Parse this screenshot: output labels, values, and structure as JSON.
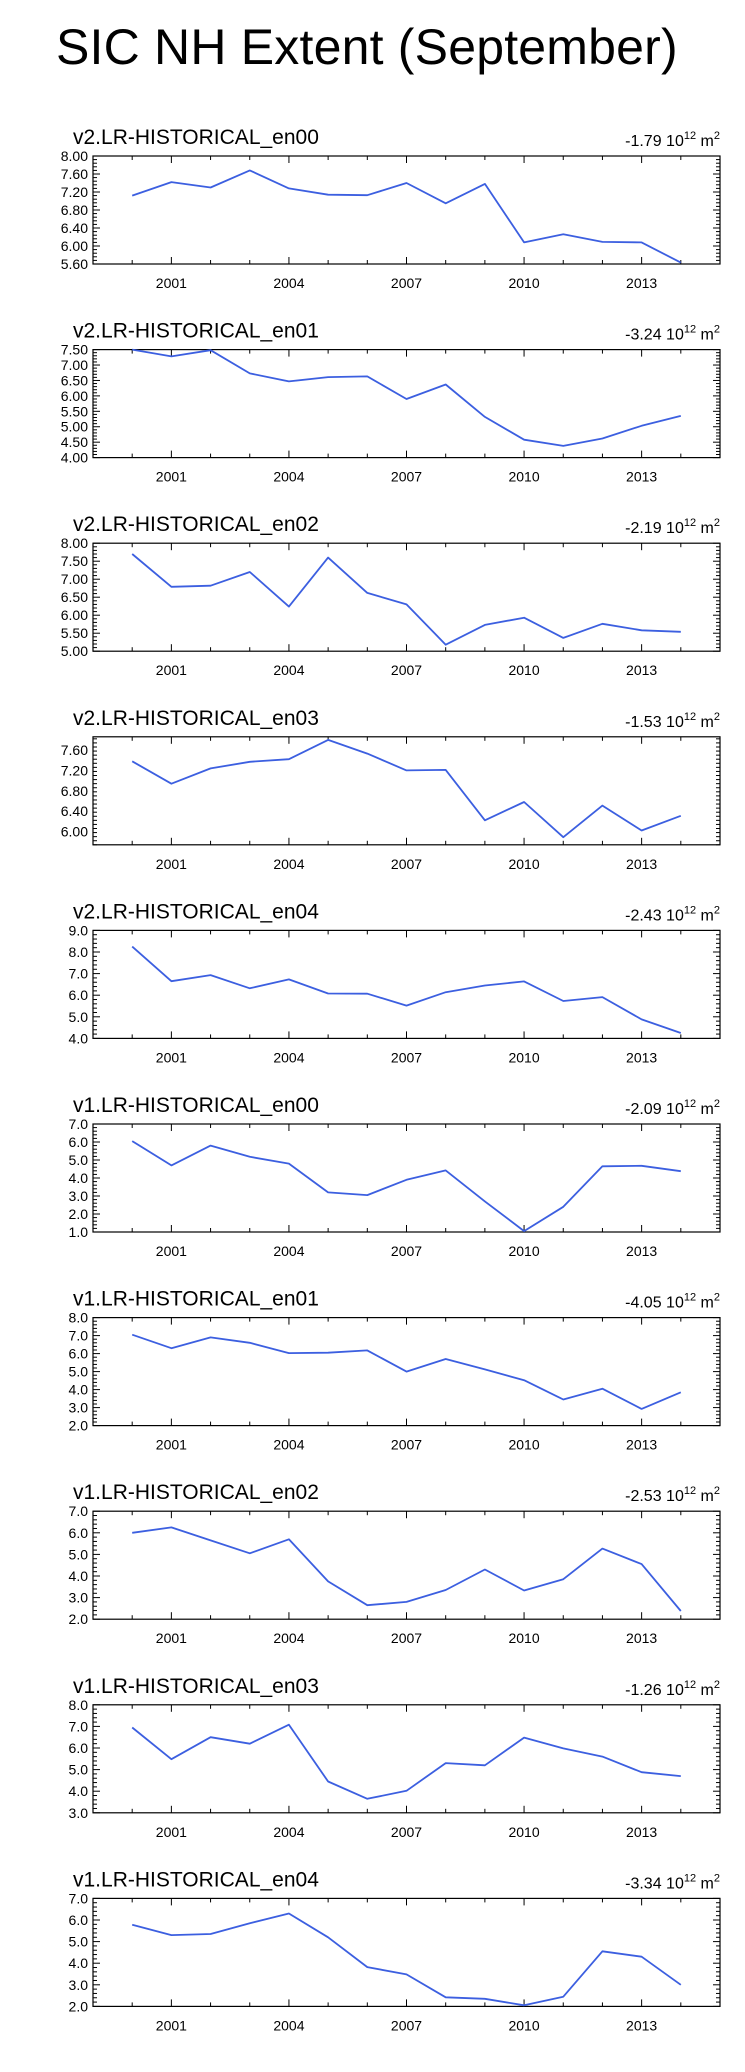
{
  "title": "SIC NH Extent (September)",
  "colors": {
    "line": "#3c5fe0",
    "axis": "#000000"
  },
  "chart_data": [
    {
      "type": "line",
      "title": "v2.LR-HISTORICAL_en00",
      "trend": {
        "value": "-1.79",
        "base": "10",
        "exponent": "12",
        "unit": "m",
        "unit_exponent": "2"
      },
      "x": [
        2000,
        2001,
        2002,
        2003,
        2004,
        2005,
        2006,
        2007,
        2008,
        2009,
        2010,
        2011,
        2012,
        2013,
        2014
      ],
      "y": [
        7.12,
        7.42,
        7.3,
        7.68,
        7.28,
        7.14,
        7.13,
        7.4,
        6.95,
        7.38,
        6.08,
        6.26,
        6.09,
        6.08,
        5.63
      ],
      "xlim": [
        1999,
        2015
      ],
      "ylim": [
        5.6,
        8.0
      ],
      "xticks": [
        "2001",
        "2004",
        "2007",
        "2010",
        "2013"
      ],
      "yticks": [
        "5.60",
        "6.00",
        "6.40",
        "6.80",
        "7.20",
        "7.60",
        "8.00"
      ]
    },
    {
      "type": "line",
      "title": "v2.LR-HISTORICAL_en01",
      "trend": {
        "value": "-3.24",
        "base": "10",
        "exponent": "12",
        "unit": "m",
        "unit_exponent": "2"
      },
      "x": [
        2000,
        2001,
        2002,
        2003,
        2004,
        2005,
        2006,
        2007,
        2008,
        2009,
        2010,
        2011,
        2012,
        2013,
        2014
      ],
      "y": [
        7.5,
        7.28,
        7.48,
        6.73,
        6.47,
        6.61,
        6.63,
        5.9,
        6.37,
        5.32,
        4.58,
        4.38,
        4.62,
        5.03,
        5.35
      ],
      "xlim": [
        1999,
        2015
      ],
      "ylim": [
        4.0,
        7.5
      ],
      "xticks": [
        "2001",
        "2004",
        "2007",
        "2010",
        "2013"
      ],
      "yticks": [
        "4.00",
        "4.50",
        "5.00",
        "5.50",
        "6.00",
        "6.50",
        "7.00",
        "7.50"
      ]
    },
    {
      "type": "line",
      "title": "v2.LR-HISTORICAL_en02",
      "trend": {
        "value": "-2.19",
        "base": "10",
        "exponent": "12",
        "unit": "m",
        "unit_exponent": "2"
      },
      "x": [
        2000,
        2001,
        2002,
        2003,
        2004,
        2005,
        2006,
        2007,
        2008,
        2009,
        2010,
        2011,
        2012,
        2013,
        2014
      ],
      "y": [
        7.7,
        6.79,
        6.82,
        7.2,
        6.24,
        7.6,
        6.62,
        6.3,
        5.18,
        5.73,
        5.93,
        5.37,
        5.76,
        5.58,
        5.54
      ],
      "xlim": [
        1999,
        2015
      ],
      "ylim": [
        5.0,
        8.0
      ],
      "xticks": [
        "2001",
        "2004",
        "2007",
        "2010",
        "2013"
      ],
      "yticks": [
        "5.00",
        "5.50",
        "6.00",
        "6.50",
        "7.00",
        "7.50",
        "8.00"
      ]
    },
    {
      "type": "line",
      "title": "v2.LR-HISTORICAL_en03",
      "trend": {
        "value": "-1.53",
        "base": "10",
        "exponent": "12",
        "unit": "m",
        "unit_exponent": "2"
      },
      "x": [
        2000,
        2001,
        2002,
        2003,
        2004,
        2005,
        2006,
        2007,
        2008,
        2009,
        2010,
        2011,
        2012,
        2013,
        2014
      ],
      "y": [
        7.38,
        6.94,
        7.24,
        7.37,
        7.42,
        7.8,
        7.53,
        7.2,
        7.21,
        6.22,
        6.58,
        5.89,
        6.51,
        6.02,
        6.31
      ],
      "xlim": [
        1999,
        2015
      ],
      "ylim": [
        5.74,
        7.86
      ],
      "xticks": [
        "2001",
        "2004",
        "2007",
        "2010",
        "2013"
      ],
      "yticks": [
        "6.00",
        "6.40",
        "6.80",
        "7.20",
        "7.60"
      ]
    },
    {
      "type": "line",
      "title": "v2.LR-HISTORICAL_en04",
      "trend": {
        "value": "-2.43",
        "base": "10",
        "exponent": "12",
        "unit": "m",
        "unit_exponent": "2"
      },
      "x": [
        2000,
        2001,
        2002,
        2003,
        2004,
        2005,
        2006,
        2007,
        2008,
        2009,
        2010,
        2011,
        2012,
        2013,
        2014
      ],
      "y": [
        8.25,
        6.65,
        6.93,
        6.32,
        6.73,
        6.08,
        6.07,
        5.52,
        6.14,
        6.45,
        6.64,
        5.73,
        5.91,
        4.88,
        4.25
      ],
      "xlim": [
        1999,
        2015
      ],
      "ylim": [
        4.0,
        9.0
      ],
      "xticks": [
        "2001",
        "2004",
        "2007",
        "2010",
        "2013"
      ],
      "yticks": [
        "4.0",
        "5.0",
        "6.0",
        "7.0",
        "8.0",
        "9.0"
      ]
    },
    {
      "type": "line",
      "title": "v1.LR-HISTORICAL_en00",
      "trend": {
        "value": "-2.09",
        "base": "10",
        "exponent": "12",
        "unit": "m",
        "unit_exponent": "2"
      },
      "x": [
        2000,
        2001,
        2002,
        2003,
        2004,
        2005,
        2006,
        2007,
        2008,
        2009,
        2010,
        2011,
        2012,
        2013,
        2014
      ],
      "y": [
        6.05,
        4.7,
        5.8,
        5.18,
        4.8,
        3.2,
        3.05,
        3.9,
        4.42,
        2.7,
        1.05,
        2.4,
        4.65,
        4.68,
        4.38
      ],
      "xlim": [
        1999,
        2015
      ],
      "ylim": [
        1.0,
        7.0
      ],
      "xticks": [
        "2001",
        "2004",
        "2007",
        "2010",
        "2013"
      ],
      "yticks": [
        "1.0",
        "2.0",
        "3.0",
        "4.0",
        "5.0",
        "6.0",
        "7.0"
      ]
    },
    {
      "type": "line",
      "title": "v1.LR-HISTORICAL_en01",
      "trend": {
        "value": "-4.05",
        "base": "10",
        "exponent": "12",
        "unit": "m",
        "unit_exponent": "2"
      },
      "x": [
        2000,
        2001,
        2002,
        2003,
        2004,
        2005,
        2006,
        2007,
        2008,
        2009,
        2010,
        2011,
        2012,
        2013,
        2014
      ],
      "y": [
        7.05,
        6.3,
        6.9,
        6.6,
        6.03,
        6.05,
        6.18,
        5.0,
        5.7,
        5.12,
        4.52,
        3.45,
        4.05,
        2.93,
        3.85
      ],
      "xlim": [
        1999,
        2015
      ],
      "ylim": [
        2.0,
        8.0
      ],
      "xticks": [
        "2001",
        "2004",
        "2007",
        "2010",
        "2013"
      ],
      "yticks": [
        "2.0",
        "3.0",
        "4.0",
        "5.0",
        "6.0",
        "7.0",
        "8.0"
      ]
    },
    {
      "type": "line",
      "title": "v1.LR-HISTORICAL_en02",
      "trend": {
        "value": "-2.53",
        "base": "10",
        "exponent": "12",
        "unit": "m",
        "unit_exponent": "2"
      },
      "x": [
        2000,
        2001,
        2002,
        2003,
        2004,
        2005,
        2006,
        2007,
        2008,
        2009,
        2010,
        2011,
        2012,
        2013,
        2014
      ],
      "y": [
        6.0,
        6.25,
        5.65,
        5.05,
        5.7,
        3.75,
        2.65,
        2.8,
        3.35,
        4.3,
        3.33,
        3.85,
        5.27,
        4.55,
        2.38
      ],
      "xlim": [
        1999,
        2015
      ],
      "ylim": [
        2.0,
        7.0
      ],
      "xticks": [
        "2001",
        "2004",
        "2007",
        "2010",
        "2013"
      ],
      "yticks": [
        "2.0",
        "3.0",
        "4.0",
        "5.0",
        "6.0",
        "7.0"
      ]
    },
    {
      "type": "line",
      "title": "v1.LR-HISTORICAL_en03",
      "trend": {
        "value": "-1.26",
        "base": "10",
        "exponent": "12",
        "unit": "m",
        "unit_exponent": "2"
      },
      "x": [
        2000,
        2001,
        2002,
        2003,
        2004,
        2005,
        2006,
        2007,
        2008,
        2009,
        2010,
        2011,
        2012,
        2013,
        2014
      ],
      "y": [
        6.95,
        5.48,
        6.5,
        6.2,
        7.08,
        4.45,
        3.65,
        4.02,
        5.3,
        5.2,
        6.48,
        5.98,
        5.6,
        4.88,
        4.7
      ],
      "xlim": [
        1999,
        2015
      ],
      "ylim": [
        3.0,
        8.0
      ],
      "xticks": [
        "2001",
        "2004",
        "2007",
        "2010",
        "2013"
      ],
      "yticks": [
        "3.0",
        "4.0",
        "5.0",
        "6.0",
        "7.0",
        "8.0"
      ]
    },
    {
      "type": "line",
      "title": "v1.LR-HISTORICAL_en04",
      "trend": {
        "value": "-3.34",
        "base": "10",
        "exponent": "12",
        "unit": "m",
        "unit_exponent": "2"
      },
      "x": [
        2000,
        2001,
        2002,
        2003,
        2004,
        2005,
        2006,
        2007,
        2008,
        2009,
        2010,
        2011,
        2012,
        2013,
        2014
      ],
      "y": [
        5.78,
        5.3,
        5.35,
        5.85,
        6.3,
        5.2,
        3.82,
        3.48,
        2.42,
        2.35,
        2.05,
        2.45,
        4.55,
        4.3,
        3.0
      ],
      "xlim": [
        1999,
        2015
      ],
      "ylim": [
        2.0,
        7.0
      ],
      "xticks": [
        "2001",
        "2004",
        "2007",
        "2010",
        "2013"
      ],
      "yticks": [
        "2.0",
        "3.0",
        "4.0",
        "5.0",
        "6.0",
        "7.0"
      ]
    }
  ]
}
